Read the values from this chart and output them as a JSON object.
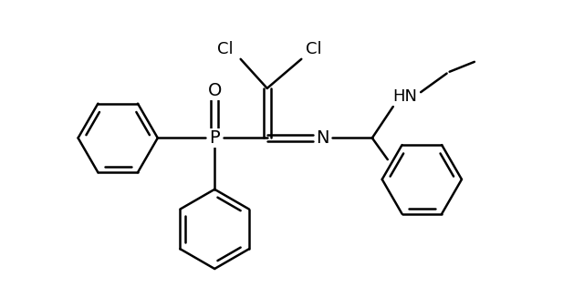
{
  "background_color": "#ffffff",
  "line_color": "#000000",
  "line_width": 1.8,
  "font_size": 13,
  "figsize": [
    6.4,
    3.15
  ],
  "dpi": 100,
  "xlim": [
    0,
    10
  ],
  "ylim": [
    0,
    5.2
  ]
}
